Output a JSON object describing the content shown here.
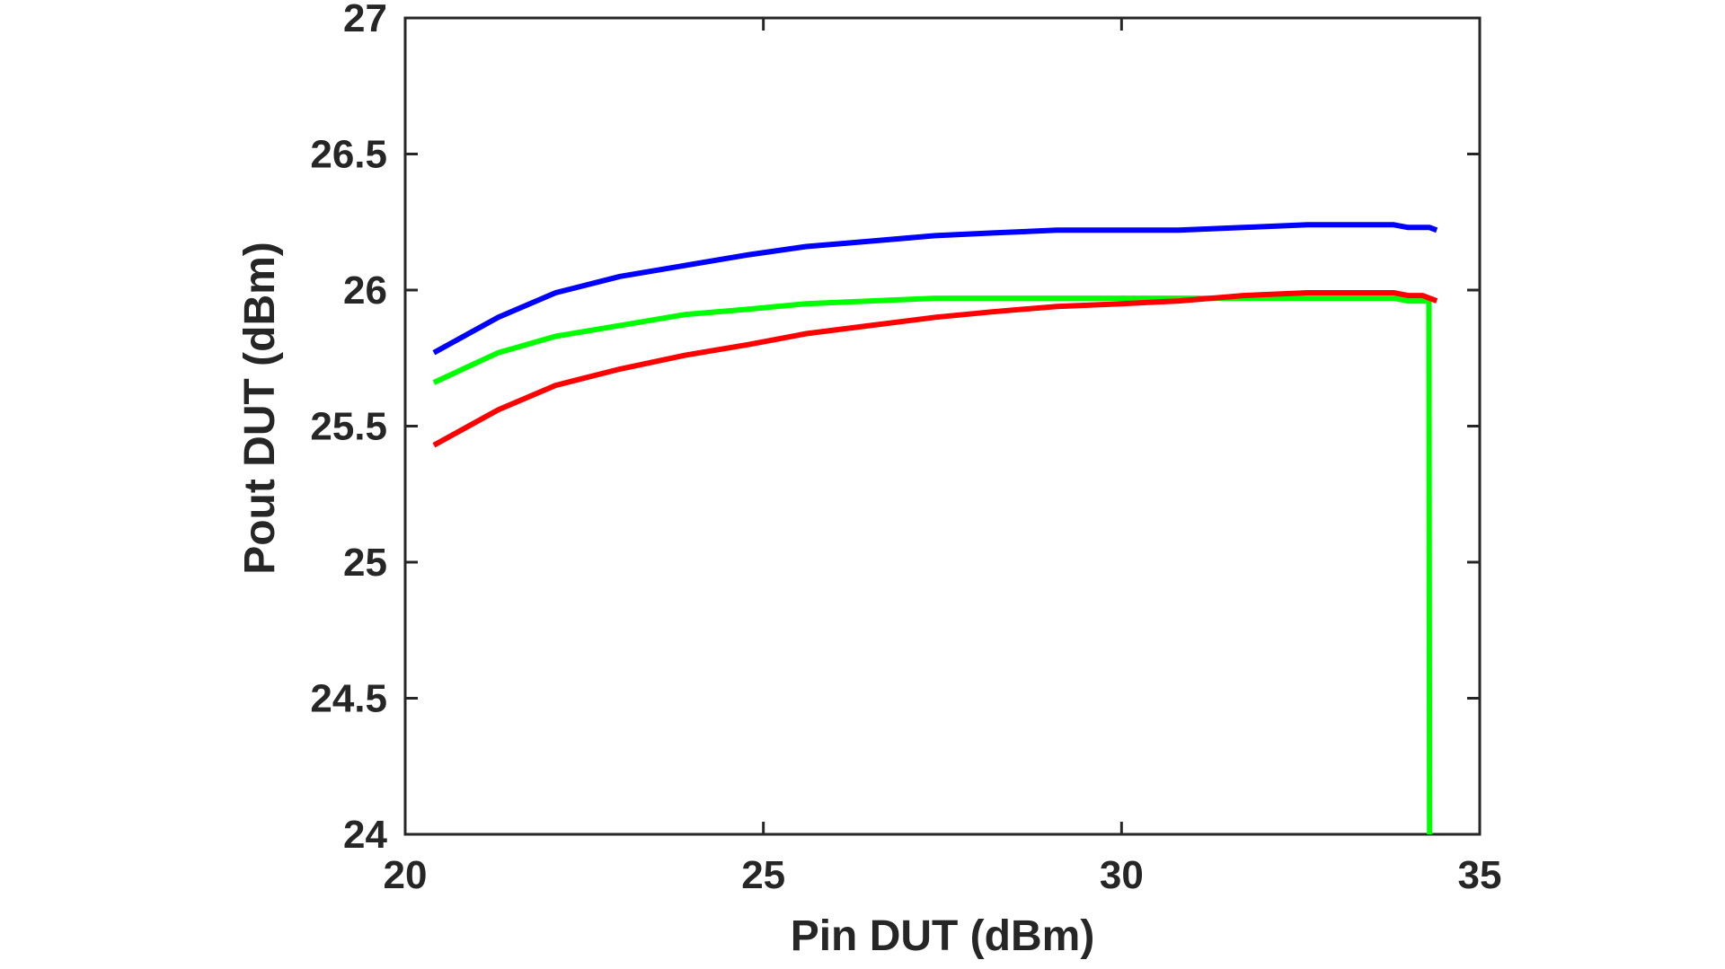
{
  "chart_data": {
    "type": "line",
    "xlabel": "Pin DUT (dBm)",
    "ylabel": "Pout DUT (dBm)",
    "xlim": [
      20,
      35
    ],
    "ylim": [
      24,
      27
    ],
    "xticks": [
      "20",
      "25",
      "30",
      "35"
    ],
    "yticks": [
      "24",
      "24.5",
      "25",
      "25.5",
      "26",
      "26.5",
      "27"
    ],
    "grid": false,
    "legend": "none",
    "series": [
      {
        "color": "#0000ff",
        "x": [
          20.4,
          21.3,
          22.1,
          23.0,
          23.9,
          24.8,
          25.6,
          26.5,
          27.4,
          28.2,
          29.1,
          30.0,
          30.8,
          31.7,
          32.6,
          33.4,
          33.8,
          34.0,
          34.3,
          34.4
        ],
        "y": [
          25.77,
          25.9,
          25.99,
          26.05,
          26.09,
          26.13,
          26.16,
          26.18,
          26.2,
          26.21,
          26.22,
          26.22,
          26.22,
          26.23,
          26.24,
          26.24,
          26.24,
          26.23,
          26.23,
          26.22
        ]
      },
      {
        "color": "#00ff00",
        "x": [
          20.4,
          21.3,
          22.1,
          23.0,
          23.9,
          24.8,
          25.6,
          26.5,
          27.4,
          28.2,
          29.1,
          30.0,
          30.8,
          31.7,
          32.6,
          33.4,
          33.8,
          34.0,
          34.29,
          34.3
        ],
        "y": [
          25.66,
          25.77,
          25.83,
          25.87,
          25.91,
          25.93,
          25.95,
          25.96,
          25.97,
          25.97,
          25.97,
          25.97,
          25.97,
          25.97,
          25.97,
          25.97,
          25.97,
          25.96,
          25.96,
          24.0
        ]
      },
      {
        "color": "#ff0000",
        "x": [
          20.4,
          21.3,
          22.1,
          23.0,
          23.9,
          24.8,
          25.6,
          26.5,
          27.4,
          28.2,
          29.1,
          30.0,
          30.8,
          31.7,
          32.6,
          33.4,
          33.8,
          34.0,
          34.2,
          34.4
        ],
        "y": [
          25.43,
          25.56,
          25.65,
          25.71,
          25.76,
          25.8,
          25.84,
          25.87,
          25.9,
          25.92,
          25.94,
          25.95,
          25.96,
          25.98,
          25.99,
          25.99,
          25.99,
          25.98,
          25.98,
          25.96
        ]
      }
    ]
  }
}
